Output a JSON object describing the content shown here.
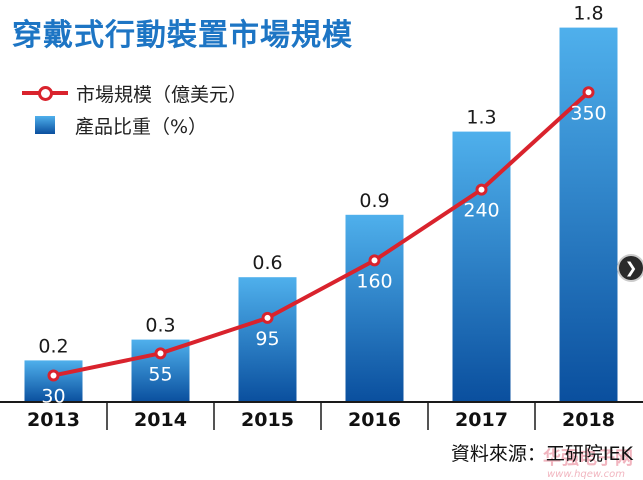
{
  "title": "穿戴式行動裝置市場規模",
  "legend": {
    "line_label": "市場規模（億美元）",
    "bar_label": "產品比重（%）"
  },
  "source": "資料來源：工研院IEK",
  "watermark": {
    "main": "华强电子网",
    "sub": "www.hqew.com"
  },
  "colors": {
    "title": "#1d75c4",
    "line": "#d9232d",
    "bar_top": "#4fb0ec",
    "bar_bottom": "#0a4f9e",
    "axis": "#1a1a1a"
  },
  "chart_data": {
    "type": "bar",
    "categories": [
      "2013",
      "2014",
      "2015",
      "2016",
      "2017",
      "2018"
    ],
    "series": [
      {
        "name": "產品比重（%）",
        "type": "bar",
        "values": [
          0.2,
          0.3,
          0.6,
          0.9,
          1.3,
          1.8
        ],
        "labels": [
          "0.2",
          "0.3",
          "0.6",
          "0.9",
          "1.3",
          "1.8"
        ]
      },
      {
        "name": "市場規模（億美元）",
        "type": "line",
        "values": [
          30,
          55,
          95,
          160,
          240,
          350
        ],
        "labels": [
          "30",
          "55",
          "95",
          "160",
          "240",
          "350"
        ]
      }
    ],
    "bar_axis_range": [
      0,
      2.0
    ],
    "line_axis_range": [
      0,
      450
    ],
    "grid": false,
    "legend_position": "top-left"
  }
}
